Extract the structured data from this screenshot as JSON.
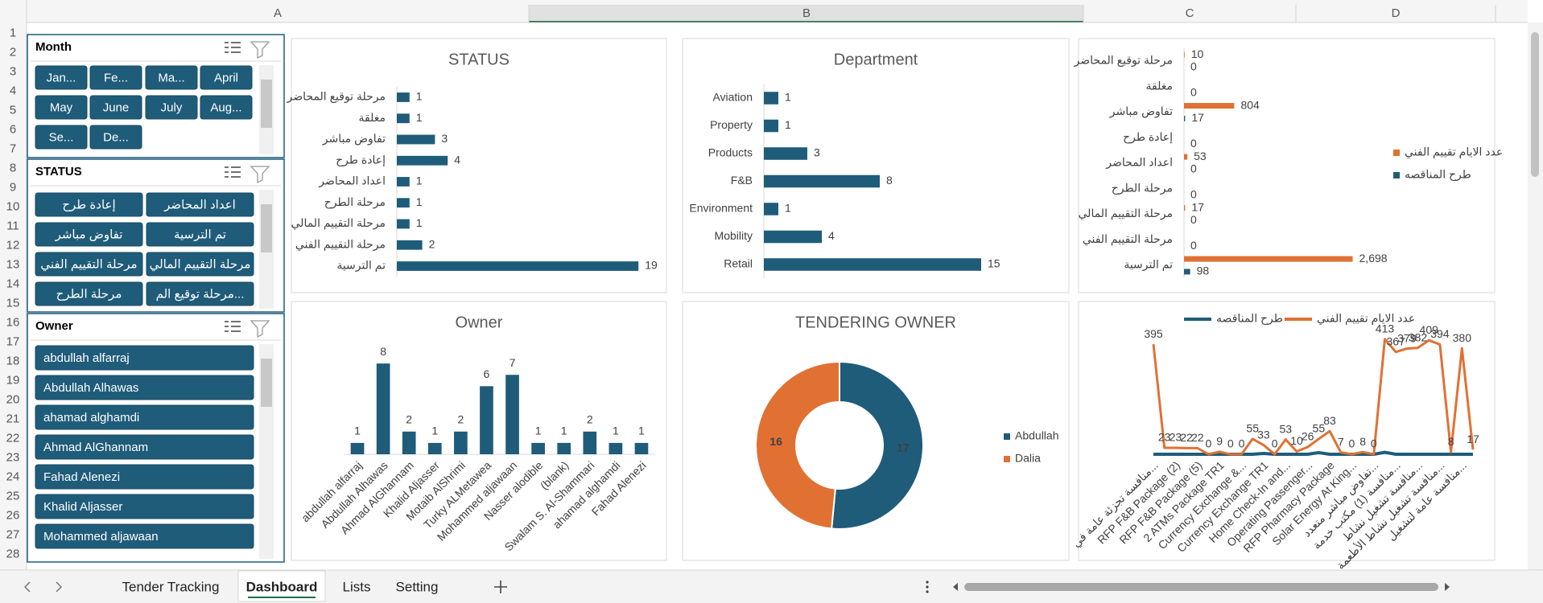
{
  "sheet": {
    "columns": [
      "A",
      "B",
      "C",
      "D"
    ],
    "rows": [
      1,
      2,
      3,
      4,
      5,
      6,
      7,
      8,
      9,
      10,
      11,
      12,
      13,
      14,
      15,
      16,
      17,
      18,
      19,
      20,
      21,
      22,
      23,
      24,
      25,
      26,
      27,
      28
    ]
  },
  "slicers": [
    {
      "title": "Month",
      "items": [
        "Jan...",
        "Fe...",
        "Ma...",
        "April",
        "May",
        "June",
        "July",
        "Aug...",
        "Se...",
        "De..."
      ]
    },
    {
      "title": "STATUS",
      "items": [
        "إعادة طرح",
        "اعداد المحاضر",
        "تفاوض مباشر",
        "تم الترسية",
        "مرحلة التقييم الفني",
        "مرحلة التقييم المالي",
        "مرحلة الطرح",
        "مرحلة توقيع الم..."
      ]
    },
    {
      "title": "Owner",
      "items": [
        "abdullah alfarraj",
        "Abdullah Alhawas",
        "ahamad alghamdi",
        "Ahmad AlGhannam",
        "Fahad Alenezi",
        "Khalid Aljasser",
        "Mohammed aljawaan"
      ]
    }
  ],
  "chart_data": [
    {
      "type": "bar",
      "horizontal": true,
      "title": "STATUS",
      "categories": [
        "مرحلة توقيع المحاضر",
        "مغلقة",
        "تفاوض مباشر",
        "إعادة طرح",
        "اعداد المحاضر",
        "مرحلة الطرح",
        "مرحلة التقييم المالي",
        "مرحلة التقييم الفني",
        "تم الترسية"
      ],
      "values": [
        1,
        1,
        3,
        4,
        1,
        1,
        1,
        2,
        19
      ],
      "color": "#1f5c7a",
      "xlim": [
        0,
        20
      ]
    },
    {
      "type": "bar",
      "horizontal": true,
      "title": "Department",
      "categories": [
        "Aviation",
        "Property",
        "Products",
        "F&B",
        "Environment",
        "Mobility",
        "Retail"
      ],
      "values": [
        1,
        1,
        3,
        8,
        1,
        4,
        15
      ],
      "color": "#1f5c7a",
      "xlim": [
        0,
        16
      ]
    },
    {
      "type": "bar",
      "horizontal": true,
      "categories": [
        "مرحلة توقيع المحاضر",
        "مغلقة",
        "تفاوض مباشر",
        "إعادة طرح",
        "اعداد المحاضر",
        "مرحلة الطرح",
        "مرحلة التقييم المالي",
        "مرحلة التقييم الفني",
        "تم الترسية"
      ],
      "series": [
        {
          "name": "عدد الايام تقييم الفني",
          "color": "#e07133",
          "values": [
            10,
            null,
            804,
            null,
            53,
            null,
            17,
            null,
            2698
          ],
          "value_labels": [
            "10",
            null,
            "804",
            null,
            "53",
            null,
            "17",
            null,
            "2,698"
          ]
        },
        {
          "name": "طرح المناقصه",
          "color": "#1f5c7a",
          "values": [
            0,
            0,
            17,
            0,
            0,
            0,
            0,
            0,
            98
          ]
        }
      ],
      "xlim": [
        0,
        3000
      ],
      "legend": "right"
    },
    {
      "type": "bar",
      "title": "Owner",
      "categories": [
        "abdullah alfarraj",
        "Abdullah Alhawas",
        "Ahmad AlGhannam",
        "Khalid Aljasser",
        "Motaib AlShrimi",
        "Turky ALMetawea",
        "Mohammed aljawaan",
        "Nasser alodible",
        "(blank)",
        "Swalam S. Al-Shammari",
        "ahamad alghamdi",
        "Fahad Alenezi"
      ],
      "values": [
        1,
        8,
        2,
        1,
        2,
        6,
        7,
        1,
        1,
        2,
        1,
        1
      ],
      "color": "#1f5c7a",
      "ylim": [
        0,
        9
      ]
    },
    {
      "type": "doughnut",
      "title": "TENDERING OWNER",
      "categories": [
        "Abdullah",
        "Dalia"
      ],
      "values": [
        17,
        16
      ],
      "colors": [
        "#1f5c7a",
        "#e07133"
      ],
      "legend": "right"
    },
    {
      "type": "line",
      "categories": [
        "منافسة تجزئة عامة في...",
        null,
        "RFP F&B Package (2)",
        null,
        "RFP F&B Package (5)",
        null,
        "2 ATMs Package TR1",
        null,
        "Currency Exchange &...",
        null,
        "Currency Exchange TR1",
        null,
        "Home Check-In and...",
        null,
        "Operating Passenger...",
        null,
        "RFP Pharmacy Package",
        null,
        "Solar Energy At King...",
        null,
        "تفاوض مباشر متعدد...",
        null,
        "منافسة (1) مكتب خدمة...",
        null,
        "منافسة تشغيل نشاط...",
        null,
        "منافسة تشغيل نشاط الأطعمة...",
        null,
        "منافسة عامة لتشغيل...",
        null
      ],
      "series": [
        {
          "name": "طرح المناقصه",
          "color": "#1f5c7a",
          "values": [
            0,
            0,
            0,
            0,
            0,
            0,
            0,
            0,
            0,
            0,
            3,
            0,
            0,
            0,
            0,
            6,
            0,
            0,
            0,
            0,
            0,
            7,
            0,
            0,
            0,
            0,
            0,
            0,
            0,
            0
          ]
        },
        {
          "name": "عدد الايام تقييم الفني",
          "color": "#e07133",
          "values": [
            395,
            23,
            23,
            22,
            22,
            0,
            9,
            0,
            0,
            55,
            33,
            0,
            53,
            10,
            26,
            55,
            83,
            7,
            0,
            8,
            0,
            413,
            367,
            379,
            382,
            409,
            394,
            8,
            380,
            17
          ]
        }
      ],
      "ylim": [
        0,
        450
      ],
      "legend": "top"
    }
  ],
  "tabs": [
    "Tender Tracking",
    "Dashboard",
    "Lists",
    "Setting"
  ]
}
